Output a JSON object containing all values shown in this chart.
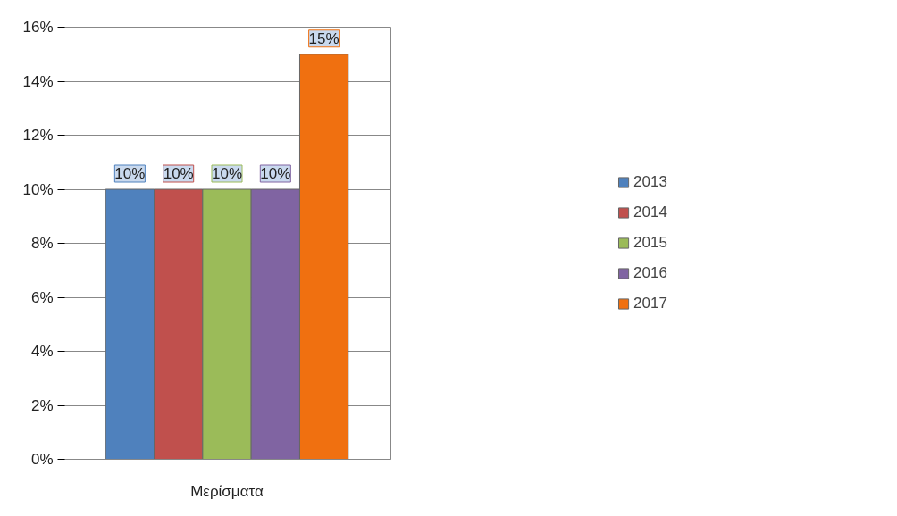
{
  "chart_data": {
    "type": "bar",
    "categories": [
      "Μερίσματα"
    ],
    "series": [
      {
        "name": "2013",
        "color": "#4f81bd",
        "values": [
          10
        ],
        "value_labels": [
          "10%"
        ]
      },
      {
        "name": "2014",
        "color": "#c0504d",
        "values": [
          10
        ],
        "value_labels": [
          "10%"
        ]
      },
      {
        "name": "2015",
        "color": "#9bbb59",
        "values": [
          10
        ],
        "value_labels": [
          "10%"
        ]
      },
      {
        "name": "2016",
        "color": "#8064a2",
        "values": [
          10
        ],
        "value_labels": [
          "10%"
        ]
      },
      {
        "name": "2017",
        "color": "#f07010",
        "values": [
          15
        ],
        "value_labels": [
          "15%"
        ]
      }
    ],
    "ylim": [
      0,
      16
    ],
    "yticks": [
      {
        "value": 0,
        "label": "0%"
      },
      {
        "value": 2,
        "label": "2%"
      },
      {
        "value": 4,
        "label": "4%"
      },
      {
        "value": 6,
        "label": "6%"
      },
      {
        "value": 8,
        "label": "8%"
      },
      {
        "value": 10,
        "label": "10%"
      },
      {
        "value": 12,
        "label": "12%"
      },
      {
        "value": 14,
        "label": "14%"
      },
      {
        "value": 16,
        "label": "16%"
      }
    ],
    "grid": "y",
    "legend": "right"
  }
}
